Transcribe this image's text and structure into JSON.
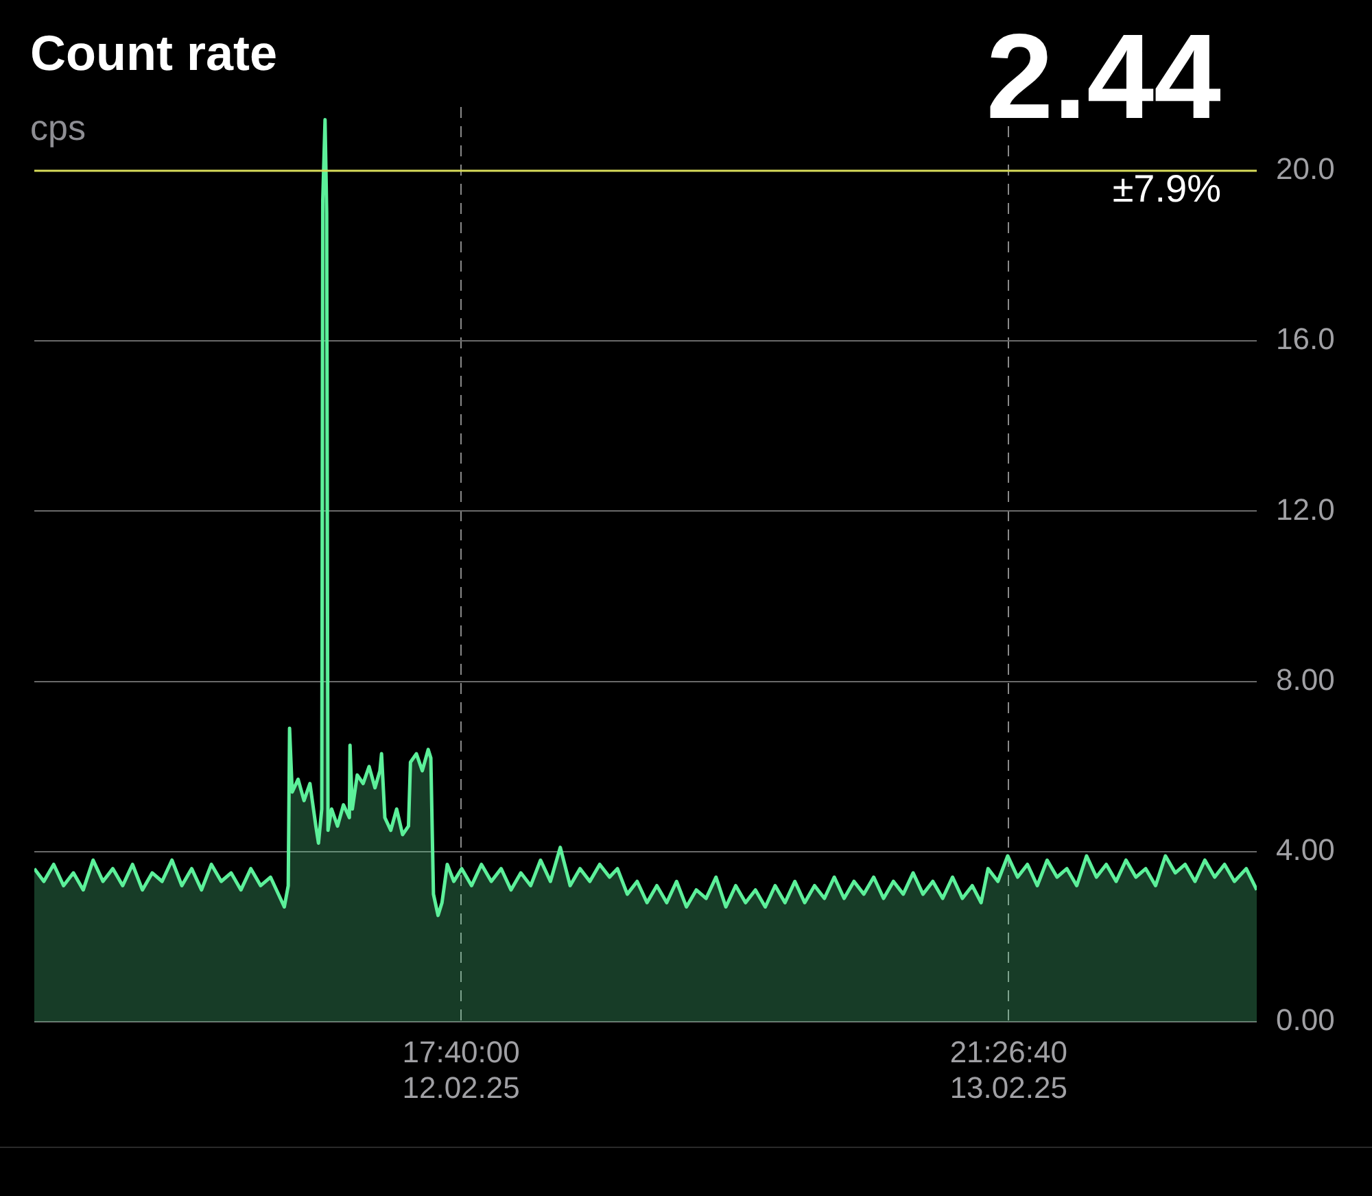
{
  "chart_data": {
    "type": "area",
    "title": "Count rate",
    "subtitle": "cps",
    "annotations": [
      "2.44",
      "±7.9%"
    ],
    "x": [
      "--02-11T20:01",
      "--02-11T20:30",
      "--02-11T21:00",
      "--02-11T21:30",
      "--02-11T22:00",
      "--02-11T22:30",
      "--02-11T23:00",
      "--02-11T23:30",
      "--02-12T00:00",
      "--02-12T00:30",
      "--02-12T01:00",
      "--02-12T01:30",
      "--02-12T02:00",
      "--02-12T02:30",
      "--02-12T03:00",
      "--02-12T03:30",
      "--02-12T04:00",
      "--02-12T04:30",
      "--02-12T05:00",
      "--02-12T05:30",
      "--02-12T06:00",
      "--02-12T06:30",
      "--02-12T07:00",
      "--02-12T07:30",
      "--02-12T08:00",
      "--02-12T08:30",
      "--02-12T08:42",
      "--02-12T08:54",
      "--02-12T08:58",
      "--02-12T09:06",
      "--02-12T09:24",
      "--02-12T09:42",
      "--02-12T10:00",
      "--02-12T10:18",
      "--02-12T10:26",
      "--02-12T10:36",
      "--02-12T10:39",
      "--02-12T10:46",
      "--02-12T10:51",
      "--02-12T10:55",
      "--02-12T11:06",
      "--02-12T11:24",
      "--02-12T11:42",
      "--02-12T12:00",
      "--02-12T12:02",
      "--02-12T12:09",
      "--02-12T12:24",
      "--02-12T12:42",
      "--02-12T13:00",
      "--02-12T13:18",
      "--02-12T13:33",
      "--02-12T13:38",
      "--02-12T13:48",
      "--02-12T14:06",
      "--02-12T14:24",
      "--02-12T14:42",
      "--02-12T15:00",
      "--02-12T15:06",
      "--02-12T15:24",
      "--02-12T15:42",
      "--02-12T16:00",
      "--02-12T16:08",
      "--02-12T16:16",
      "--02-12T16:30",
      "--02-12T16:42",
      "--02-12T16:58",
      "--02-12T17:18",
      "--02-12T17:42",
      "--02-12T18:12",
      "--02-12T18:42",
      "--02-12T19:12",
      "--02-12T19:42",
      "--02-12T20:12",
      "--02-12T20:42",
      "--02-12T21:12",
      "--02-12T21:42",
      "--02-12T22:12",
      "--02-12T22:42",
      "--02-12T23:12",
      "--02-12T23:42",
      "--02-13T00:12",
      "--02-13T00:42",
      "--02-13T01:12",
      "--02-13T01:36",
      "--02-13T02:06",
      "--02-13T02:36",
      "--02-13T03:06",
      "--02-13T03:36",
      "--02-13T04:06",
      "--02-13T04:36",
      "--02-13T05:06",
      "--02-13T05:36",
      "--02-13T06:06",
      "--02-13T06:36",
      "--02-13T07:06",
      "--02-13T07:36",
      "--02-13T08:06",
      "--02-13T08:36",
      "--02-13T09:06",
      "--02-13T09:36",
      "--02-13T10:06",
      "--02-13T10:36",
      "--02-13T11:06",
      "--02-13T11:36",
      "--02-13T12:06",
      "--02-13T12:36",
      "--02-13T13:06",
      "--02-13T13:36",
      "--02-13T14:06",
      "--02-13T14:36",
      "--02-13T15:06",
      "--02-13T15:36",
      "--02-13T16:06",
      "--02-13T16:36",
      "--02-13T17:06",
      "--02-13T17:36",
      "--02-13T18:06",
      "--02-13T18:36",
      "--02-13T19:06",
      "--02-13T19:36",
      "--02-13T20:03",
      "--02-13T20:24",
      "--02-13T20:54",
      "--02-13T21:24",
      "--02-13T21:54",
      "--02-13T22:24",
      "--02-13T22:54",
      "--02-13T23:24",
      "--02-13T23:54",
      "--02-14T00:24",
      "--02-14T00:54",
      "--02-14T01:24",
      "--02-14T01:54",
      "--02-14T02:24",
      "--02-14T02:54",
      "--02-14T03:24",
      "--02-14T03:54",
      "--02-14T04:24",
      "--02-14T04:54",
      "--02-14T05:24",
      "--02-14T05:54",
      "--02-14T06:24",
      "--02-14T06:54",
      "--02-14T07:24",
      "--02-14T07:54",
      "--02-14T08:24",
      "--02-14T08:54",
      "--02-14T09:30",
      "--02-14T10:02"
    ],
    "series": [
      {
        "color": "#5cf09a",
        "values": [
          3.6,
          3.3,
          3.7,
          3.2,
          3.5,
          3.1,
          3.8,
          3.3,
          3.6,
          3.2,
          3.7,
          3.1,
          3.5,
          3.3,
          3.8,
          3.2,
          3.6,
          3.1,
          3.7,
          3.3,
          3.5,
          3.1,
          3.6,
          3.2,
          3.4,
          2.9,
          2.7,
          3.2,
          6.9,
          5.4,
          5.7,
          5.2,
          5.6,
          4.6,
          4.2,
          5.0,
          19.3,
          21.2,
          19.0,
          4.5,
          5.0,
          4.6,
          5.1,
          4.8,
          6.5,
          5.0,
          5.8,
          5.6,
          6.0,
          5.5,
          5.9,
          6.3,
          4.8,
          4.5,
          5.0,
          4.4,
          4.6,
          6.1,
          6.3,
          5.9,
          6.4,
          6.2,
          3.0,
          2.5,
          2.8,
          3.7,
          3.3,
          3.6,
          3.2,
          3.7,
          3.3,
          3.6,
          3.1,
          3.5,
          3.2,
          3.8,
          3.3,
          4.1,
          3.2,
          3.6,
          3.3,
          3.7,
          3.4,
          3.6,
          3.0,
          3.3,
          2.8,
          3.2,
          2.8,
          3.3,
          2.7,
          3.1,
          2.9,
          3.4,
          2.7,
          3.2,
          2.8,
          3.1,
          2.7,
          3.2,
          2.8,
          3.3,
          2.8,
          3.2,
          2.9,
          3.4,
          2.9,
          3.3,
          3.0,
          3.4,
          2.9,
          3.3,
          3.0,
          3.5,
          3.0,
          3.3,
          2.9,
          3.4,
          2.9,
          3.2,
          2.8,
          3.6,
          3.3,
          3.9,
          3.4,
          3.7,
          3.2,
          3.8,
          3.4,
          3.6,
          3.2,
          3.9,
          3.4,
          3.7,
          3.3,
          3.8,
          3.4,
          3.6,
          3.2,
          3.9,
          3.5,
          3.7,
          3.3,
          3.8,
          3.4,
          3.7,
          3.3,
          3.6,
          3.1
        ]
      }
    ],
    "xlim": [
      "--02-11T20:01",
      "--02-14T10:02"
    ],
    "xticks": [
      {
        "value": "--02-12T17:40:00",
        "label": "17:40:00\n12.02.25"
      },
      {
        "value": "--02-13T21:26:40",
        "label": "21:26:40\n13.02.25"
      }
    ],
    "ylim": [
      0,
      21.5
    ],
    "yticks": [
      {
        "value": 0,
        "label": "0.00"
      },
      {
        "value": 4,
        "label": "4.00"
      },
      {
        "value": 8,
        "label": "8.00"
      },
      {
        "value": 12,
        "label": "12.0"
      },
      {
        "value": 16,
        "label": "16.0"
      },
      {
        "value": 20,
        "label": "20.0"
      }
    ],
    "ref_lines": [
      {
        "axis": "y",
        "value": 20,
        "color": "#d8dc5a"
      }
    ],
    "grid": true,
    "legend": false,
    "marker": "none",
    "line_style": "solid"
  }
}
